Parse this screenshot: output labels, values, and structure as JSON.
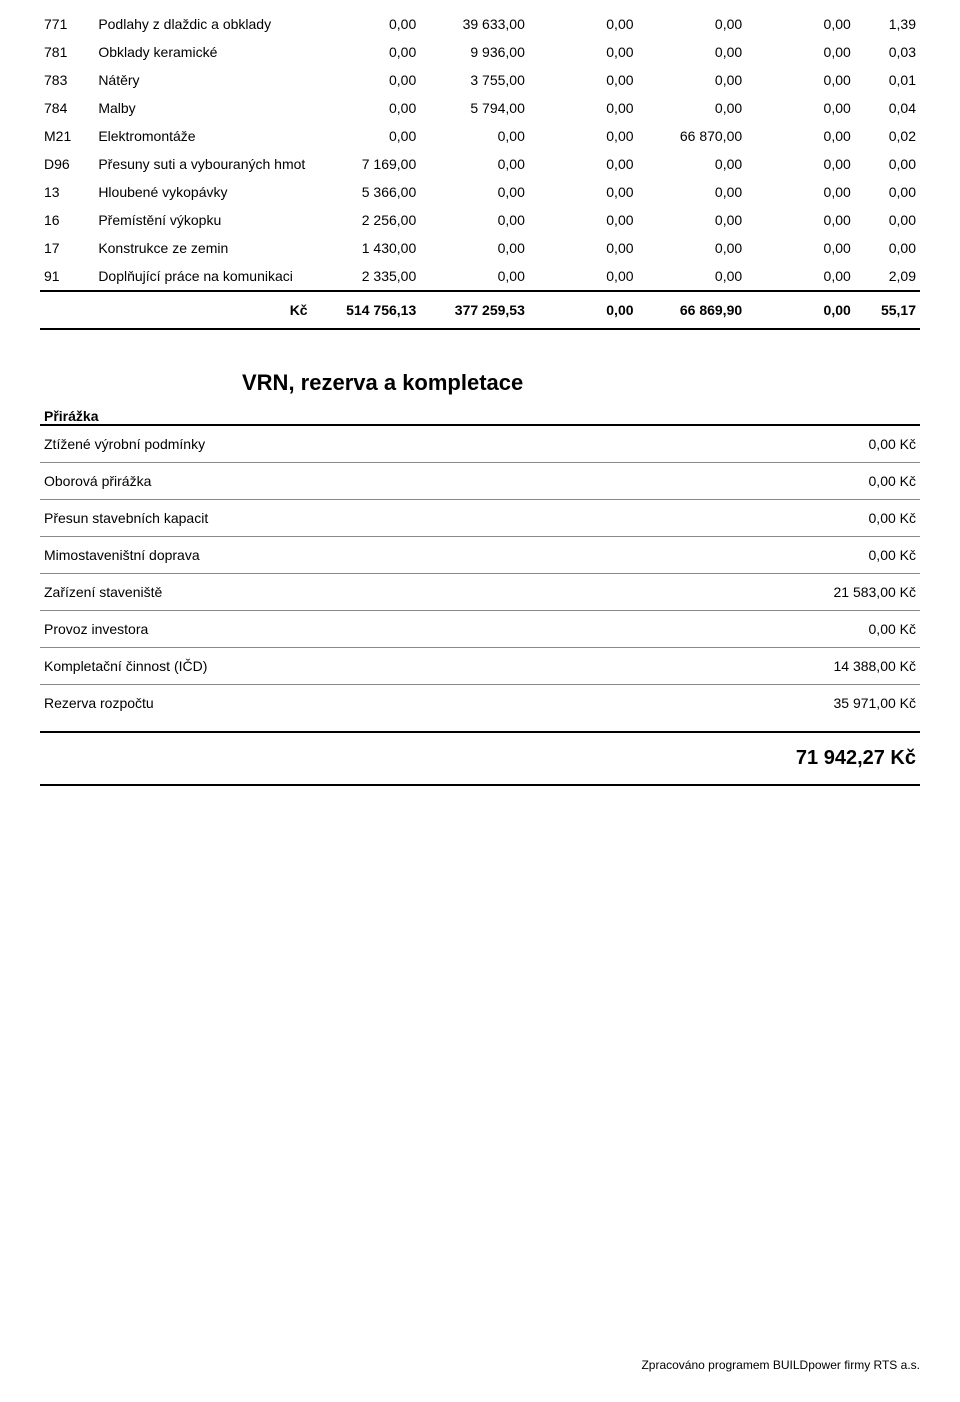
{
  "table1": {
    "rows": [
      {
        "code": "771",
        "desc": "Podlahy z dlaždic a obklady",
        "v1": "0,00",
        "v2": "39 633,00",
        "v3": "0,00",
        "v4": "0,00",
        "v5": "0,00",
        "v6": "1,39"
      },
      {
        "code": "781",
        "desc": "Obklady keramické",
        "v1": "0,00",
        "v2": "9 936,00",
        "v3": "0,00",
        "v4": "0,00",
        "v5": "0,00",
        "v6": "0,03"
      },
      {
        "code": "783",
        "desc": "Nátěry",
        "v1": "0,00",
        "v2": "3 755,00",
        "v3": "0,00",
        "v4": "0,00",
        "v5": "0,00",
        "v6": "0,01"
      },
      {
        "code": "784",
        "desc": "Malby",
        "v1": "0,00",
        "v2": "5 794,00",
        "v3": "0,00",
        "v4": "0,00",
        "v5": "0,00",
        "v6": "0,04"
      },
      {
        "code": "M21",
        "desc": "Elektromontáže",
        "v1": "0,00",
        "v2": "0,00",
        "v3": "0,00",
        "v4": "66 870,00",
        "v5": "0,00",
        "v6": "0,02"
      },
      {
        "code": "D96",
        "desc": "Přesuny suti a vybouraných hmot",
        "v1": "7 169,00",
        "v2": "0,00",
        "v3": "0,00",
        "v4": "0,00",
        "v5": "0,00",
        "v6": "0,00"
      },
      {
        "code": "13",
        "desc": "Hloubené vykopávky",
        "v1": "5 366,00",
        "v2": "0,00",
        "v3": "0,00",
        "v4": "0,00",
        "v5": "0,00",
        "v6": "0,00"
      },
      {
        "code": "16",
        "desc": "Přemístění výkopku",
        "v1": "2 256,00",
        "v2": "0,00",
        "v3": "0,00",
        "v4": "0,00",
        "v5": "0,00",
        "v6": "0,00"
      },
      {
        "code": "17",
        "desc": "Konstrukce ze zemin",
        "v1": "1 430,00",
        "v2": "0,00",
        "v3": "0,00",
        "v4": "0,00",
        "v5": "0,00",
        "v6": "0,00"
      },
      {
        "code": "91",
        "desc": "Doplňující práce na komunikaci",
        "v1": "2 335,00",
        "v2": "0,00",
        "v3": "0,00",
        "v4": "0,00",
        "v5": "0,00",
        "v6": "2,09"
      }
    ],
    "sum": {
      "currency": "Kč",
      "v1": "514 756,13",
      "v2": "377 259,53",
      "v3": "0,00",
      "v4": "66 869,90",
      "v5": "0,00",
      "v6": "55,17"
    }
  },
  "section2": {
    "title": "VRN, rezerva a kompletace",
    "prirazka": "Přirážka",
    "rows": [
      {
        "label": "Ztížené výrobní podmínky",
        "value": "0,00 Kč",
        "border": "heavy"
      },
      {
        "label": "Oborová přirážka",
        "value": "0,00 Kč",
        "border": "thin"
      },
      {
        "label": "Přesun stavebních kapacit",
        "value": "0,00 Kč",
        "border": "thin"
      },
      {
        "label": "Mimostaveništní doprava",
        "value": "0,00 Kč",
        "border": "thin"
      },
      {
        "label": "Zařízení staveniště",
        "value": "21 583,00 Kč",
        "border": "thin"
      },
      {
        "label": "Provoz investora",
        "value": "0,00 Kč",
        "border": "thin"
      },
      {
        "label": "Kompletační činnost (IČD)",
        "value": "14 388,00 Kč",
        "border": "thin"
      },
      {
        "label": "Rezerva rozpočtu",
        "value": "35 971,00 Kč",
        "border": "thin"
      }
    ],
    "grand_total": "71 942,27 Kč"
  },
  "footer": "Zpracováno programem BUILDpower firmy RTS a.s."
}
